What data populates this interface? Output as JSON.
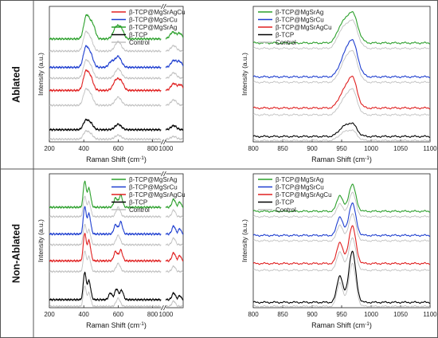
{
  "figure": {
    "row_labels": [
      "Ablated",
      "Non-Ablated"
    ],
    "x_label_parts": {
      "before": "Raman Shift (cm",
      "sup": "-1",
      "after": ")"
    },
    "y_label": "Intensity (a.u.)"
  },
  "chart_data": [
    {
      "type": "line",
      "panel": "ablated-wide",
      "xlim": [
        200,
        1100
      ],
      "x_break": [
        850,
        1000
      ],
      "x_ticks": [
        "200",
        "400",
        "600",
        "800",
        "1000"
      ],
      "xlabel": "Raman Shift (cm-1)",
      "ylabel": "Intensity (a.u.)",
      "legend_position": "top-right",
      "legend": [
        "β-TCP@MgSrAgCu",
        "β-TCP@MgSrCu",
        "β-TCP@MgSrAg",
        "β-TCP",
        "Control"
      ],
      "series": [
        {
          "name": "β-TCP@MgSrAg",
          "color": "#2ca02c",
          "baseline": 0.76,
          "peaks": [
            [
              412,
              0.14,
              14
            ],
            [
              438,
              0.11,
              16
            ],
            [
              460,
              0.05,
              12
            ],
            [
              590,
              0.09,
              18
            ],
            [
              620,
              0.06,
              14
            ],
            [
              1040,
              0.05,
              16
            ],
            [
              1080,
              0.04,
              14
            ]
          ]
        },
        {
          "name": "β-TCP@MgSrCu",
          "color": "#1f3fd0",
          "baseline": 0.55,
          "peaks": [
            [
              410,
              0.13,
              14
            ],
            [
              438,
              0.1,
              16
            ],
            [
              560,
              0.04,
              15
            ],
            [
              600,
              0.08,
              18
            ],
            [
              1045,
              0.05,
              16
            ],
            [
              1080,
              0.04,
              14
            ]
          ]
        },
        {
          "name": "β-TCP@MgSrAgCu",
          "color": "#e02020",
          "baseline": 0.38,
          "peaks": [
            [
              410,
              0.12,
              14
            ],
            [
              438,
              0.1,
              16
            ],
            [
              590,
              0.08,
              18
            ],
            [
              620,
              0.05,
              14
            ],
            [
              1045,
              0.05,
              16
            ],
            [
              1085,
              0.04,
              14
            ]
          ]
        },
        {
          "name": "β-TCP",
          "color": "#000000",
          "baseline": 0.09,
          "peaks": [
            [
              410,
              0.06,
              14
            ],
            [
              438,
              0.05,
              16
            ],
            [
              600,
              0.04,
              18
            ],
            [
              1045,
              0.03,
              16
            ]
          ]
        },
        {
          "name": "Control",
          "color": "#c0c0c0",
          "baseline": 0.67,
          "peaks": [
            [
              410,
              0.12,
              14
            ],
            [
              438,
              0.09,
              16
            ],
            [
              600,
              0.07,
              18
            ],
            [
              1045,
              0.04,
              16
            ]
          ]
        },
        {
          "name": "Control",
          "color": "#c0c0c0",
          "baseline": 0.47,
          "peaks": [
            [
              410,
              0.11,
              14
            ],
            [
              438,
              0.09,
              16
            ],
            [
              600,
              0.07,
              18
            ],
            [
              1045,
              0.04,
              16
            ]
          ]
        },
        {
          "name": "Control",
          "color": "#c0c0c0",
          "baseline": 0.27,
          "peaks": [
            [
              410,
              0.1,
              14
            ],
            [
              438,
              0.08,
              16
            ],
            [
              600,
              0.06,
              18
            ],
            [
              1045,
              0.04,
              16
            ]
          ]
        },
        {
          "name": "Control",
          "color": "#c0c0c0",
          "baseline": 0.02,
          "peaks": [
            [
              410,
              0.05,
              14
            ],
            [
              438,
              0.04,
              16
            ],
            [
              600,
              0.03,
              18
            ],
            [
              1045,
              0.02,
              16
            ]
          ]
        }
      ]
    },
    {
      "type": "line",
      "panel": "ablated-zoom",
      "xlim": [
        800,
        1100
      ],
      "x_ticks": [
        "800",
        "850",
        "900",
        "950",
        "1000",
        "1050",
        "1100"
      ],
      "xlabel": "Raman Shift (cm-1)",
      "ylabel": "Intensity (a.u.)",
      "legend_position": "top-left",
      "legend": [
        "β-TCP@MgSrAg",
        "β-TCP@MgSrCu",
        "β-TCP@MgSrAgCu",
        "β-TCP",
        "Control"
      ],
      "series": [
        {
          "name": "β-TCP@MgSrAg",
          "color": "#2ca02c",
          "baseline": 0.73,
          "peaks": [
            [
              950,
              0.12,
              8
            ],
            [
              968,
              0.22,
              9
            ]
          ]
        },
        {
          "name": "β-TCP@MgSrCu",
          "color": "#1f3fd0",
          "baseline": 0.48,
          "peaks": [
            [
              952,
              0.1,
              8
            ],
            [
              968,
              0.26,
              9
            ]
          ]
        },
        {
          "name": "β-TCP@MgSrAgCu",
          "color": "#e02020",
          "baseline": 0.25,
          "peaks": [
            [
              952,
              0.1,
              8
            ],
            [
              968,
              0.22,
              8
            ]
          ]
        },
        {
          "name": "β-TCP",
          "color": "#000000",
          "baseline": 0.04,
          "peaks": [
            [
              952,
              0.06,
              8
            ],
            [
              968,
              0.09,
              8
            ]
          ]
        },
        {
          "name": "Control",
          "color": "#c0c0c0",
          "baseline": 0.69,
          "peaks": [
            [
              950,
              0.12,
              8
            ],
            [
              968,
              0.2,
              9
            ]
          ]
        },
        {
          "name": "Control",
          "color": "#c0c0c0",
          "baseline": 0.44,
          "peaks": [
            [
              952,
              0.1,
              8
            ],
            [
              968,
              0.22,
              9
            ]
          ]
        },
        {
          "name": "Control",
          "color": "#c0c0c0",
          "baseline": 0.2,
          "peaks": [
            [
              952,
              0.09,
              8
            ],
            [
              968,
              0.18,
              8
            ]
          ]
        },
        {
          "name": "Control",
          "color": "#c0c0c0",
          "baseline": 0.01,
          "peaks": [
            [
              952,
              0.05,
              8
            ],
            [
              968,
              0.07,
              8
            ]
          ]
        }
      ]
    },
    {
      "type": "line",
      "panel": "nonablated-wide",
      "xlim": [
        200,
        1100
      ],
      "x_break": [
        850,
        1000
      ],
      "x_ticks": [
        "200",
        "400",
        "600",
        "800",
        "1000"
      ],
      "xlabel": "Raman Shift (cm-1)",
      "ylabel": "Intensity (a.u.)",
      "legend_position": "top-right",
      "legend": [
        "β-TCP@MgSrAg",
        "β-TCP@MgSrCu",
        "β-TCP@MgSrAgCu",
        "β-TCP",
        "Control"
      ],
      "series": [
        {
          "name": "β-TCP@MgSrAg",
          "color": "#2ca02c",
          "baseline": 0.75,
          "peaks": [
            [
              405,
              0.19,
              8
            ],
            [
              430,
              0.14,
              10
            ],
            [
              585,
              0.07,
              10
            ],
            [
              615,
              0.09,
              10
            ],
            [
              1045,
              0.06,
              10
            ],
            [
              1080,
              0.04,
              8
            ]
          ]
        },
        {
          "name": "β-TCP@MgSrCu",
          "color": "#1f3fd0",
          "baseline": 0.55,
          "peaks": [
            [
              405,
              0.2,
              8
            ],
            [
              430,
              0.15,
              10
            ],
            [
              585,
              0.07,
              10
            ],
            [
              615,
              0.09,
              10
            ],
            [
              1045,
              0.06,
              10
            ],
            [
              1080,
              0.04,
              8
            ]
          ]
        },
        {
          "name": "β-TCP@MgSrAgCu",
          "color": "#e02020",
          "baseline": 0.35,
          "peaks": [
            [
              405,
              0.2,
              8
            ],
            [
              430,
              0.15,
              10
            ],
            [
              585,
              0.07,
              10
            ],
            [
              615,
              0.08,
              10
            ],
            [
              1045,
              0.06,
              10
            ],
            [
              1080,
              0.04,
              8
            ]
          ]
        },
        {
          "name": "β-TCP",
          "color": "#000000",
          "baseline": 0.06,
          "peaks": [
            [
              405,
              0.2,
              8
            ],
            [
              430,
              0.14,
              10
            ],
            [
              555,
              0.05,
              10
            ],
            [
              590,
              0.08,
              10
            ],
            [
              620,
              0.07,
              10
            ],
            [
              1045,
              0.05,
              10
            ],
            [
              1080,
              0.03,
              8
            ]
          ]
        },
        {
          "name": "Control",
          "color": "#c0c0c0",
          "baseline": 0.68,
          "peaks": [
            [
              405,
              0.15,
              8
            ],
            [
              430,
              0.11,
              10
            ],
            [
              600,
              0.07,
              12
            ],
            [
              1045,
              0.05,
              10
            ]
          ]
        },
        {
          "name": "Control",
          "color": "#c0c0c0",
          "baseline": 0.47,
          "peaks": [
            [
              405,
              0.15,
              8
            ],
            [
              430,
              0.11,
              10
            ],
            [
              600,
              0.07,
              12
            ],
            [
              1045,
              0.05,
              10
            ]
          ]
        },
        {
          "name": "Control",
          "color": "#c0c0c0",
          "baseline": 0.27,
          "peaks": [
            [
              405,
              0.15,
              8
            ],
            [
              430,
              0.11,
              10
            ],
            [
              600,
              0.06,
              12
            ],
            [
              1045,
              0.04,
              10
            ]
          ]
        },
        {
          "name": "Control",
          "color": "#c0c0c0",
          "baseline": 0.01,
          "peaks": [
            [
              405,
              0.15,
              8
            ],
            [
              430,
              0.1,
              10
            ],
            [
              600,
              0.06,
              12
            ],
            [
              1045,
              0.04,
              10
            ]
          ]
        }
      ]
    },
    {
      "type": "line",
      "panel": "nonablated-zoom",
      "xlim": [
        800,
        1100
      ],
      "x_ticks": [
        "800",
        "850",
        "900",
        "950",
        "1000",
        "1050",
        "1100"
      ],
      "xlabel": "Raman Shift (cm-1)",
      "ylabel": "Intensity (a.u.)",
      "legend_position": "top-left",
      "legend": [
        "β-TCP@MgSrAg",
        "β-TCP@MgSrCu",
        "β-TCP@MgSrAgCu",
        "β-TCP",
        "Control"
      ],
      "series": [
        {
          "name": "β-TCP@MgSrAg",
          "color": "#2ca02c",
          "baseline": 0.72,
          "peaks": [
            [
              947,
              0.12,
              5
            ],
            [
              968,
              0.2,
              6
            ]
          ]
        },
        {
          "name": "β-TCP@MgSrCu",
          "color": "#1f3fd0",
          "baseline": 0.54,
          "peaks": [
            [
              947,
              0.14,
              5
            ],
            [
              968,
              0.24,
              6
            ]
          ]
        },
        {
          "name": "β-TCP@MgSrAgCu",
          "color": "#e02020",
          "baseline": 0.33,
          "peaks": [
            [
              947,
              0.16,
              5
            ],
            [
              968,
              0.28,
              6
            ]
          ]
        },
        {
          "name": "β-TCP",
          "color": "#000000",
          "baseline": 0.04,
          "peaks": [
            [
              947,
              0.2,
              5
            ],
            [
              968,
              0.38,
              6
            ]
          ]
        },
        {
          "name": "Control",
          "color": "#c0c0c0",
          "baseline": 0.68,
          "peaks": [
            [
              947,
              0.1,
              5
            ],
            [
              968,
              0.18,
              6
            ]
          ]
        },
        {
          "name": "Control",
          "color": "#c0c0c0",
          "baseline": 0.5,
          "peaks": [
            [
              947,
              0.12,
              5
            ],
            [
              968,
              0.2,
              6
            ]
          ]
        },
        {
          "name": "Control",
          "color": "#c0c0c0",
          "baseline": 0.28,
          "peaks": [
            [
              947,
              0.14,
              5
            ],
            [
              968,
              0.24,
              6
            ]
          ]
        },
        {
          "name": "Control",
          "color": "#c0c0c0",
          "baseline": 0.01,
          "peaks": [
            [
              947,
              0.18,
              5
            ],
            [
              968,
              0.32,
              6
            ]
          ]
        }
      ]
    }
  ]
}
